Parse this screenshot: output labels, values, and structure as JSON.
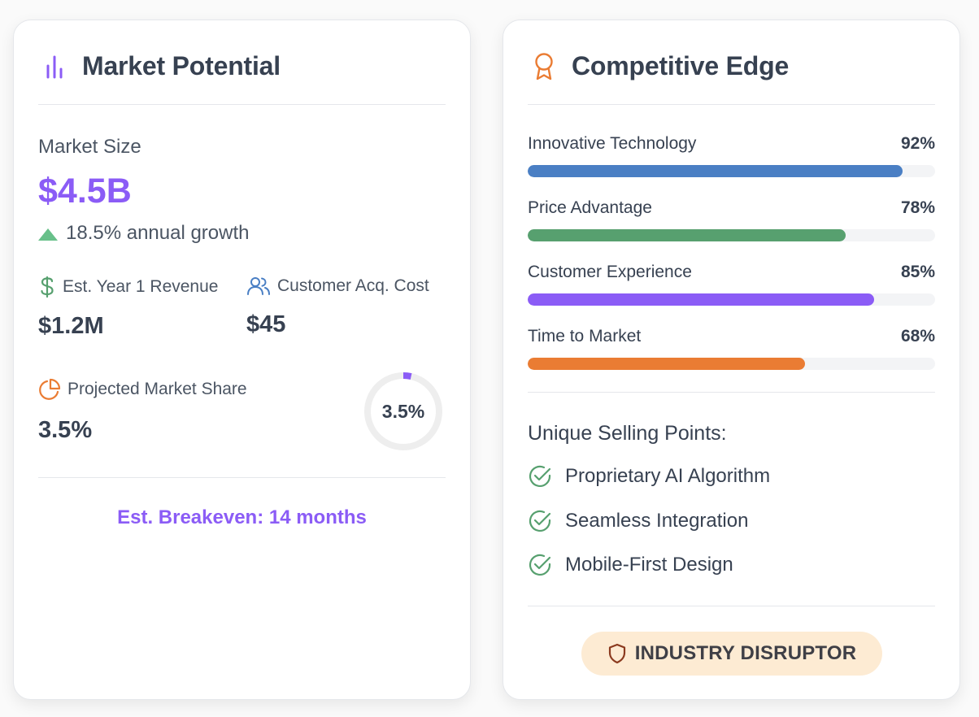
{
  "market_card": {
    "title": "Market Potential",
    "market_size_label": "Market Size",
    "market_size_value": "$4.5B",
    "growth_text": "18.5% annual growth",
    "revenue_label": "Est. Year 1 Revenue",
    "revenue_value": "$1.2M",
    "cac_label": "Customer Acq. Cost",
    "cac_value": "$45",
    "share_label": "Projected Market Share",
    "share_value": "3.5%",
    "share_donut_label": "3.5%",
    "share_fraction": 0.035,
    "breakeven": "Est. Breakeven: 14 months"
  },
  "competitive_card": {
    "title": "Competitive Edge",
    "bars": [
      {
        "label": "Innovative Technology",
        "pct_text": "92%",
        "value": 92,
        "color": "#4a7fc4"
      },
      {
        "label": "Price Advantage",
        "pct_text": "78%",
        "value": 78,
        "color": "#57a06f"
      },
      {
        "label": "Customer Experience",
        "pct_text": "85%",
        "value": 85,
        "color": "#8b5cf6"
      },
      {
        "label": "Time to Market",
        "pct_text": "68%",
        "value": 68,
        "color": "#ea7c33"
      }
    ],
    "usp_title": "Unique Selling Points:",
    "usps": [
      "Proprietary AI Algorithm",
      "Seamless Integration",
      "Mobile-First Design"
    ],
    "badge": "INDUSTRY DISRUPTOR"
  },
  "colors": {
    "accent_purple": "#8b5cf6",
    "growth_green": "#68c08a",
    "check_green": "#57a06f",
    "orange": "#ea7c33",
    "blue": "#4a7fc4",
    "badge_bg": "#fdebd3"
  },
  "icons": {
    "market_header": "bar-chart-icon",
    "competitive_header": "award-icon",
    "revenue": "dollar-icon",
    "cac": "users-icon",
    "share": "pie-chart-icon",
    "usp": "check-circle-icon",
    "badge": "shield-icon"
  }
}
